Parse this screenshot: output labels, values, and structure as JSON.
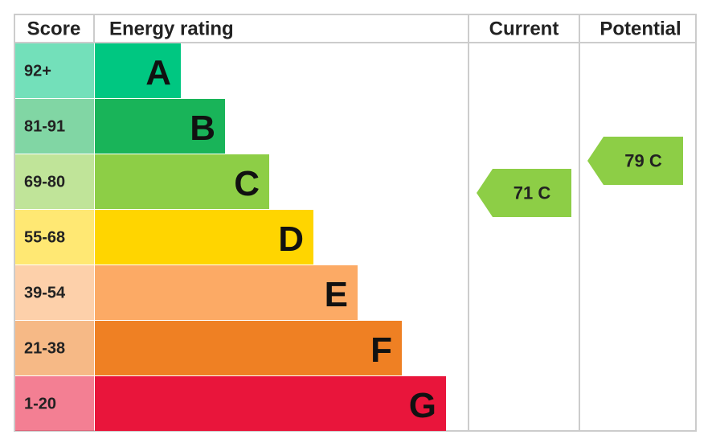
{
  "headers": [
    "Score",
    "Energy rating",
    "Current",
    "Potential"
  ],
  "bands": [
    {
      "score": "92+",
      "letter": "A",
      "color": "#00c781"
    },
    {
      "score": "81-91",
      "letter": "B",
      "color": "#19b459"
    },
    {
      "score": "69-80",
      "letter": "C",
      "color": "#8dce46"
    },
    {
      "score": "55-68",
      "letter": "D",
      "color": "#ffd500"
    },
    {
      "score": "39-54",
      "letter": "E",
      "color": "#fcaa65"
    },
    {
      "score": "21-38",
      "letter": "F",
      "color": "#ef8023"
    },
    {
      "score": "1-20",
      "letter": "G",
      "color": "#e9153b"
    }
  ],
  "current": {
    "value": 71,
    "label": "71 C",
    "color": "#8dce46"
  },
  "potential": {
    "value": 79,
    "label": "79 C",
    "color": "#8dce46"
  }
}
